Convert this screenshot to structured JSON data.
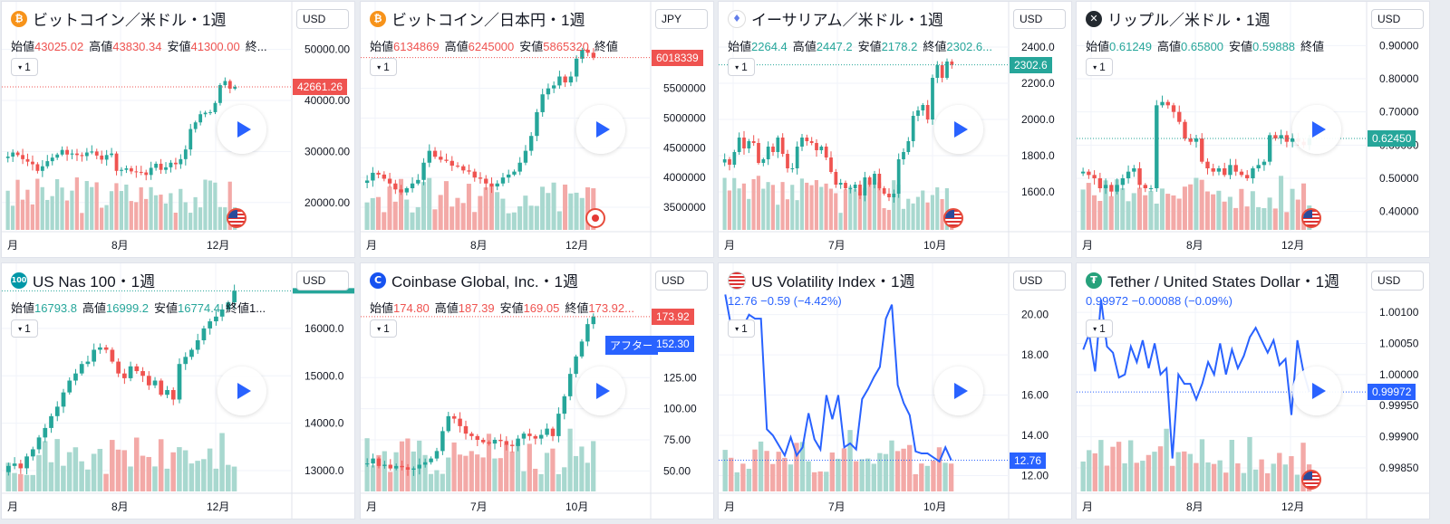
{
  "panels": [
    {
      "title": "ビットコイン／米ドル・1週",
      "logo": "bitcoin-icon",
      "logo_color": "#f7931a",
      "logo_glyph": "₿",
      "currency": "USD",
      "interval": "1",
      "ohlc": {
        "open_label": "始値",
        "open": "43025.02",
        "high_label": "高値",
        "high": "43830.34",
        "low_label": "安値",
        "low": "41300.00",
        "close_label": "終..."
      },
      "ohlc_color": "#ef5350",
      "price_tag": "42661.26",
      "price_color": "#ef5350",
      "flag": "us-flag-icon"
    },
    {
      "title": "ビットコイン／日本円・1週",
      "logo": "bitcoin-icon",
      "logo_color": "#f7931a",
      "logo_glyph": "₿",
      "currency": "JPY",
      "interval": "1",
      "ohlc": {
        "open_label": "始値",
        "open": "6134869",
        "high_label": "高値",
        "high": "6245000",
        "low_label": "安値",
        "low": "5865320",
        "close_label": "終値"
      },
      "ohlc_color": "#ef5350",
      "price_tag": "6018339",
      "price_color": "#ef5350",
      "flag": "jp-flag-icon"
    },
    {
      "title": "イーサリアム／米ドル・1週",
      "logo": "ethereum-icon",
      "logo_color": "#ffffff",
      "logo_glyph": "♦",
      "currency": "USD",
      "interval": "1",
      "ohlc": {
        "open_label": "始値",
        "open": "2264.4",
        "high_label": "高値",
        "high": "2447.2",
        "low_label": "安値",
        "low": "2178.2",
        "close_label": "終値",
        "close": "2302.6..."
      },
      "ohlc_color": "#26a69a",
      "price_tag": "2302.6",
      "price_color": "#26a69a",
      "flag": "us-flag-icon"
    },
    {
      "title": "リップル／米ドル・1週",
      "logo": "ripple-icon",
      "logo_color": "#23292f",
      "logo_glyph": "✕",
      "currency": "USD",
      "interval": "1",
      "ohlc": {
        "open_label": "始値",
        "open": "0.61249",
        "high_label": "高値",
        "high": "0.65800",
        "low_label": "安値",
        "low": "0.59888",
        "close_label": "終値"
      },
      "ohlc_color": "#26a69a",
      "price_tag": "0.62450",
      "price_color": "#26a69a",
      "flag": "us-flag-icon"
    },
    {
      "title": "US Nas 100・1週",
      "logo": "nasdaq-icon",
      "logo_color": "#0097a7",
      "logo_glyph": "100",
      "currency": "USD",
      "interval": "1",
      "ohlc": {
        "open_label": "始値",
        "open": "16793.8",
        "high_label": "高値",
        "high": "16999.2",
        "low_label": "安値",
        "low": "16774.4",
        "close_label": "終値1..."
      },
      "ohlc_color": "#26a69a",
      "price_tag": "",
      "price_color": "#26a69a",
      "flag": ""
    },
    {
      "title": "Coinbase Global, Inc.・1週",
      "logo": "coinbase-icon",
      "logo_color": "#1652f0",
      "logo_glyph": "C",
      "currency": "USD",
      "interval": "1",
      "ohlc": {
        "open_label": "始値",
        "open": "174.80",
        "high_label": "高値",
        "high": "187.39",
        "low_label": "安値",
        "low": "169.05",
        "close_label": "終値",
        "close": "173.92..."
      },
      "ohlc_color": "#ef5350",
      "price_tag": "173.92",
      "price_color": "#ef5350",
      "after_label": "アフター",
      "after_price": "152.30",
      "flag": ""
    },
    {
      "title": "US Volatility Index・1週",
      "logo": "us-flag-icon",
      "logo_color": "#2a4b9b",
      "logo_glyph": "",
      "currency": "USD",
      "interval": "1",
      "change": "12.76  −0.59 (−4.42%)",
      "price_tag": "12.76",
      "price_color": "#2962ff",
      "flag": ""
    },
    {
      "title": "Tether / United States Dollar・1週",
      "logo": "tether-icon",
      "logo_color": "#26a17b",
      "logo_glyph": "₮",
      "currency": "USD",
      "interval": "1",
      "change": "0.99972  −0.00088 (−0.09%)",
      "price_tag": "0.99972",
      "price_color": "#2962ff",
      "flag": "us-flag-icon"
    }
  ],
  "chart_data": [
    {
      "type": "candlestick",
      "y_ticks": [
        "50000.00",
        "40000.00",
        "30000.00",
        "20000.00"
      ],
      "y_tick_values": [
        50000,
        40000,
        30000,
        20000
      ],
      "ylim": [
        15000,
        54000
      ],
      "x_ticks": [
        "月",
        "8月",
        "12月"
      ],
      "closes": [
        29000,
        29800,
        29300,
        28500,
        28000,
        27500,
        26200,
        27100,
        28100,
        28800,
        29400,
        30300,
        29400,
        29600,
        29300,
        29100,
        29800,
        30000,
        29200,
        28400,
        29300,
        29600,
        26200,
        26400,
        26700,
        26100,
        26000,
        25900,
        25400,
        26800,
        27600,
        26400,
        26900,
        27800,
        27500,
        28500,
        30400,
        34400,
        35700,
        37300,
        37600,
        37700,
        39500,
        43000,
        43800,
        42300,
        42661
      ]
    },
    {
      "type": "candlestick",
      "y_ticks": [
        "5500000",
        "5000000",
        "4500000",
        "4000000",
        "3500000"
      ],
      "y_tick_values": [
        5500000,
        5000000,
        4500000,
        4000000,
        3500000
      ],
      "ylim": [
        3150000,
        6500000
      ],
      "x_ticks": [
        "月",
        "8月",
        "12月"
      ],
      "closes": [
        3950000,
        4080000,
        4050000,
        3980000,
        3900000,
        3800000,
        3750000,
        3820000,
        3900000,
        3960000,
        4250000,
        4450000,
        4350000,
        4300000,
        4280000,
        4200000,
        4190000,
        4120000,
        4100000,
        4000000,
        3980000,
        3900000,
        3850000,
        3900000,
        4000000,
        4050000,
        4100000,
        4250000,
        4450000,
        4700000,
        5100000,
        5400000,
        5500000,
        5550000,
        5700000,
        5600000,
        5700000,
        6000000,
        6150000,
        6100000,
        6018339
      ]
    },
    {
      "type": "candlestick",
      "y_ticks": [
        "2400.0",
        "2200.0",
        "2000.0",
        "1800.0",
        "1600.0"
      ],
      "y_tick_values": [
        2400,
        2200,
        2000,
        1800,
        1600
      ],
      "ylim": [
        1400,
        2500
      ],
      "x_ticks": [
        "月",
        "7月",
        "10月"
      ],
      "closes": [
        1780,
        1750,
        1820,
        1900,
        1840,
        1880,
        1870,
        1760,
        1780,
        1850,
        1820,
        1900,
        1810,
        1730,
        1730,
        1850,
        1900,
        1880,
        1870,
        1830,
        1850,
        1790,
        1710,
        1640,
        1650,
        1620,
        1620,
        1640,
        1580,
        1680,
        1640,
        1700,
        1620,
        1590,
        1570,
        1590,
        1780,
        1820,
        1880,
        2020,
        2050,
        2080,
        2000,
        2230,
        2300,
        2230,
        2320,
        2302
      ]
    },
    {
      "type": "candlestick",
      "y_ticks": [
        "0.90000",
        "0.80000",
        "0.70000",
        "0.60000",
        "0.50000",
        "0.40000"
      ],
      "y_tick_values": [
        0.9,
        0.8,
        0.7,
        0.6,
        0.5,
        0.4
      ],
      "ylim": [
        0.35,
        0.95
      ],
      "x_ticks": [
        "月",
        "8月",
        "12月"
      ],
      "closes": [
        0.52,
        0.51,
        0.5,
        0.47,
        0.48,
        0.46,
        0.48,
        0.5,
        0.52,
        0.53,
        0.48,
        0.47,
        0.47,
        0.72,
        0.73,
        0.72,
        0.7,
        0.67,
        0.62,
        0.61,
        0.62,
        0.55,
        0.53,
        0.52,
        0.53,
        0.51,
        0.54,
        0.52,
        0.51,
        0.5,
        0.53,
        0.54,
        0.55,
        0.63,
        0.62,
        0.63,
        0.61,
        0.62,
        0.61,
        0.6,
        0.62
      ]
    },
    {
      "type": "candlestick",
      "y_ticks": [
        "16000.0",
        "15000.0",
        "14000.0",
        "13000.0"
      ],
      "y_tick_values": [
        16000,
        15000,
        14000,
        13000
      ],
      "ylim": [
        12600,
        16800
      ],
      "x_ticks": [
        "月",
        "8月",
        "12月"
      ],
      "closes": [
        13100,
        13150,
        13050,
        13300,
        13450,
        13700,
        13900,
        14150,
        14350,
        14650,
        14900,
        15050,
        15250,
        15300,
        15550,
        15600,
        15550,
        15300,
        15050,
        14950,
        15200,
        15100,
        15000,
        14800,
        14900,
        14600,
        14700,
        14500,
        15250,
        15400,
        15550,
        15750,
        16000,
        16150,
        16250,
        16400,
        16550,
        16793
      ]
    },
    {
      "type": "candlestick",
      "y_ticks": [
        "125.00",
        "100.00",
        "75.00",
        "50.00"
      ],
      "y_tick_values": [
        125,
        100,
        75,
        50
      ],
      "ylim": [
        35,
        195
      ],
      "x_ticks": [
        "月",
        "7月",
        "10月"
      ],
      "closes": [
        56,
        60,
        54,
        55,
        52,
        54,
        53,
        51,
        52,
        55,
        57,
        60,
        66,
        82,
        94,
        92,
        86,
        80,
        78,
        75,
        73,
        72,
        75,
        74,
        71,
        70,
        76,
        80,
        78,
        76,
        79,
        84,
        78,
        96,
        110,
        128,
        142,
        154,
        168,
        174
      ]
    },
    {
      "type": "line",
      "y_ticks": [
        "20.00",
        "18.00",
        "16.00",
        "14.00",
        "12.00"
      ],
      "y_tick_values": [
        20,
        18,
        16,
        14,
        12
      ],
      "ylim": [
        11.3,
        21.2
      ],
      "x_ticks": [
        "月",
        "7月",
        "10月"
      ],
      "closes": [
        21.0,
        19.4,
        19.7,
        19.4,
        20.0,
        19.8,
        19.8,
        14.3,
        14.0,
        13.5,
        13.0,
        13.9,
        13.0,
        13.4,
        15.1,
        13.8,
        13.3,
        16.0,
        14.8,
        16.0,
        13.4,
        13.6,
        13.3,
        15.8,
        16.3,
        16.9,
        17.4,
        19.8,
        20.5,
        16.5,
        15.6,
        15.0,
        13.2,
        13.1,
        13.1,
        12.9,
        12.7,
        13.4,
        12.76
      ]
    },
    {
      "type": "line",
      "y_ticks": [
        "1.00100",
        "1.00050",
        "1.00000",
        "0.99950",
        "0.99900",
        "0.99850"
      ],
      "y_tick_values": [
        1.001,
        1.0005,
        1.0,
        0.9995,
        0.999,
        0.9985
      ],
      "ylim": [
        0.99815,
        1.00135
      ],
      "x_ticks": [
        "月",
        "8月",
        "12月"
      ],
      "closes": [
        1.0004,
        1.00065,
        1.00005,
        1.0012,
        1.00045,
        1.00035,
        0.99995,
        1.0,
        1.00045,
        1.0002,
        1.00055,
        1.0001,
        1.0005,
        1.0,
        1.0001,
        0.99865,
        1.0,
        0.99985,
        0.99985,
        0.9996,
        0.99985,
        1.0002,
        1.0,
        1.0005,
        1.0,
        1.0004,
        1.0001,
        1.0003,
        1.0006,
        1.00075,
        1.00055,
        1.00035,
        1.00055,
        1.00015,
        1.00025,
        0.99935,
        1.00055,
        1.00005,
        0.99972
      ]
    }
  ]
}
